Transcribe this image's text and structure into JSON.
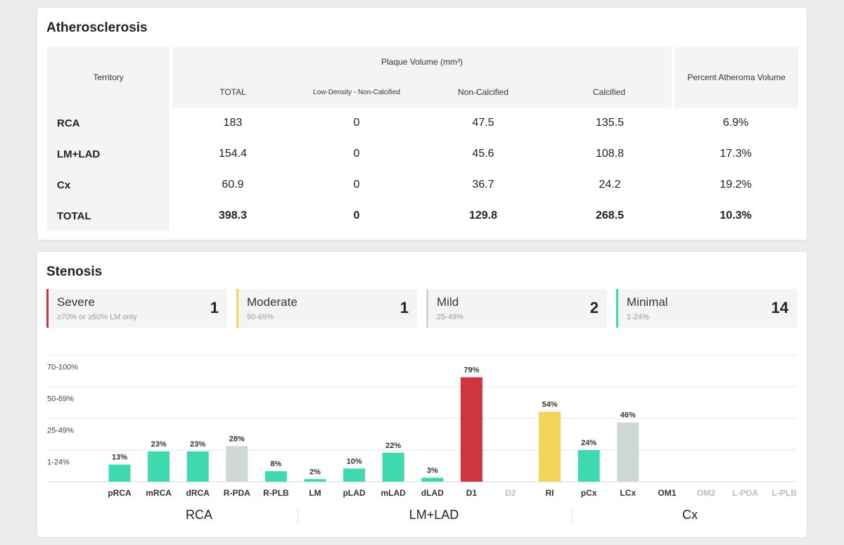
{
  "atherosclerosis": {
    "title": "Atherosclerosis",
    "headers": {
      "territory": "Territory",
      "plaque_volume": "Plaque Volume (mm³)",
      "percent_atheroma": "Percent Atheroma Volume",
      "total": "TOTAL",
      "low_density": "Low-Density - Non-Calcified",
      "non_calcified": "Non-Calcified",
      "calcified": "Calcified"
    },
    "rows": [
      {
        "territory": "RCA",
        "total": "183",
        "low_density": "0",
        "non_calcified": "47.5",
        "calcified": "135.5",
        "pav": "6.9%"
      },
      {
        "territory": "LM+LAD",
        "total": "154.4",
        "low_density": "0",
        "non_calcified": "45.6",
        "calcified": "108.8",
        "pav": "17.3%"
      },
      {
        "territory": "Cx",
        "total": "60.9",
        "low_density": "0",
        "non_calcified": "36.7",
        "calcified": "24.2",
        "pav": "19.2%"
      },
      {
        "territory": "TOTAL",
        "total": "398.3",
        "low_density": "0",
        "non_calcified": "129.8",
        "calcified": "268.5",
        "pav": "10.3%"
      }
    ]
  },
  "stenosis": {
    "title": "Stenosis",
    "tiles": [
      {
        "label": "Severe",
        "sub": "≥70% or ≥50% LM only",
        "count": "1",
        "color": "#d0343f"
      },
      {
        "label": "Moderate",
        "sub": "50-69%",
        "count": "1",
        "color": "#f2d35a"
      },
      {
        "label": "Mild",
        "sub": "25-49%",
        "count": "2",
        "color": "#cfd8d6"
      },
      {
        "label": "Minimal",
        "sub": "1-24%",
        "count": "14",
        "color": "#3fd9b0"
      }
    ],
    "groups": [
      "RCA",
      "LM+LAD",
      "Cx"
    ]
  },
  "colors": {
    "minimal": "#3fd9b0",
    "mild": "#cfd8d6",
    "moderate": "#f4d35c",
    "severe": "#d0343f"
  },
  "chart_data": {
    "type": "bar",
    "bands": [
      "1-24%",
      "25-49%",
      "50-69%",
      "70-100%"
    ],
    "categories": [
      "pRCA",
      "mRCA",
      "dRCA",
      "R-PDA",
      "R-PLB",
      "LM",
      "pLAD",
      "mLAD",
      "dLAD",
      "D1",
      "D2",
      "RI",
      "pCx",
      "LCx",
      "OM1",
      "OM2",
      "L-PDA",
      "L-PLB"
    ],
    "values": [
      13,
      23,
      23,
      28,
      8,
      2,
      10,
      22,
      3,
      79,
      null,
      54,
      24,
      46,
      null,
      null,
      null,
      null
    ],
    "value_labels": [
      "13%",
      "23%",
      "23%",
      "28%",
      "8%",
      "2%",
      "10%",
      "22%",
      "3%",
      "79%",
      "",
      "54%",
      "24%",
      "46%",
      "",
      "",
      "",
      ""
    ],
    "bar_colors": [
      "minimal",
      "minimal",
      "minimal",
      "mild",
      "minimal",
      "minimal",
      "minimal",
      "minimal",
      "minimal",
      "severe",
      "",
      "moderate",
      "minimal",
      "mild",
      "",
      "",
      "",
      ""
    ],
    "category_dimmed": [
      false,
      false,
      false,
      false,
      false,
      false,
      false,
      false,
      false,
      false,
      true,
      false,
      false,
      false,
      false,
      true,
      true,
      true
    ]
  }
}
